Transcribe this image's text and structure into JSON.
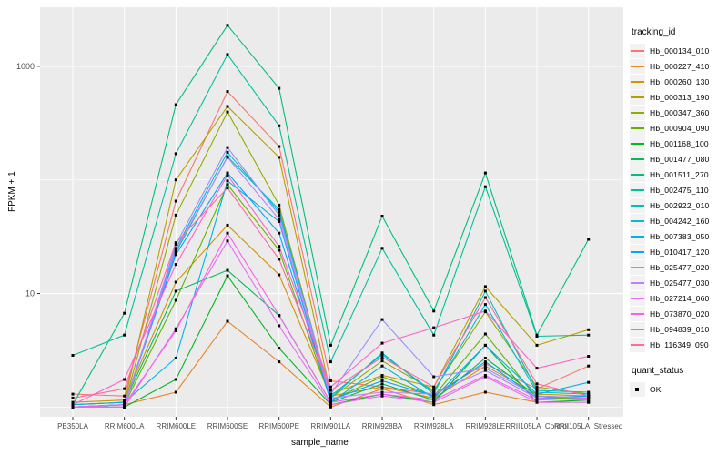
{
  "axes": {
    "y_title": "FPKM + 1",
    "x_title": "sample_name"
  },
  "legend_titles": {
    "tracking": "tracking_id",
    "quant": "quant_status"
  },
  "quant_status": {
    "label": "OK",
    "marker_color": "#000000"
  },
  "style": {
    "panel_bg": "#EBEBEB",
    "grid_color": "#FFFFFF",
    "tick_text": "#4D4D4D",
    "marker_color": "#000000",
    "background": "#FFFFFF"
  },
  "chart_data": {
    "type": "line",
    "title": "",
    "xlabel": "sample_name",
    "ylabel": "FPKM + 1",
    "y_scale": "log10",
    "y_tick_labels": [
      10,
      1000
    ],
    "y_gridlines_minor": [
      1,
      100
    ],
    "ylim": [
      0.82,
      3300
    ],
    "legend_position": "right",
    "grid": true,
    "categories": [
      "PB350LA",
      "RRIM600LA",
      "RRIM600LE",
      "RRIM600SE",
      "RRIM600PE",
      "RRIM901LA",
      "RRIM928BA",
      "RRIM928LA",
      "RRIM928LE",
      "RRII105LA_Control",
      "RRII105LA_Stressed"
    ],
    "series": [
      {
        "name": "Hb_000134_010",
        "color": "#F8766D",
        "values": [
          1.3,
          1.25,
          65,
          600,
          197,
          1.7,
          1.5,
          1.3,
          2.4,
          1.45,
          2.3
        ]
      },
      {
        "name": "Hb_000227_410",
        "color": "#E88526",
        "values": [
          1.0,
          1.05,
          1.35,
          5.7,
          2.5,
          1.0,
          1.45,
          1.05,
          1.35,
          1.1,
          1.1
        ]
      },
      {
        "name": "Hb_000260_130",
        "color": "#D39200",
        "values": [
          1.1,
          1.15,
          12.6,
          40,
          14.6,
          1.25,
          1.5,
          1.2,
          2.3,
          1.3,
          1.25
        ]
      },
      {
        "name": "Hb_000313_190",
        "color": "#B79F00",
        "values": [
          1.05,
          1.1,
          100,
          443,
          158,
          1.3,
          1.9,
          1.5,
          11.5,
          3.5,
          4.8
        ]
      },
      {
        "name": "Hb_000347_360",
        "color": "#93AA00",
        "values": [
          1.0,
          1.05,
          49,
          396,
          60,
          1.2,
          2.55,
          1.4,
          6.9,
          1.5,
          1.3
        ]
      },
      {
        "name": "Hb_000904_090",
        "color": "#64B200",
        "values": [
          1.0,
          1.05,
          8.7,
          91,
          24,
          1.15,
          1.85,
          1.25,
          4.4,
          1.2,
          1.2
        ]
      },
      {
        "name": "Hb_001168_100",
        "color": "#00B81F",
        "values": [
          1.0,
          1.0,
          1.75,
          14.3,
          3.3,
          1.05,
          1.3,
          1.1,
          3.5,
          1.1,
          1.15
        ]
      },
      {
        "name": "Hb_001477_080",
        "color": "#00BC59",
        "values": [
          1.05,
          1.1,
          10.5,
          16,
          6.4,
          1.1,
          1.6,
          1.15,
          2.7,
          1.25,
          1.2
        ]
      },
      {
        "name": "Hb_001511_270",
        "color": "#00BF7D",
        "values": [
          1.05,
          6.7,
          460,
          2300,
          640,
          3.5,
          48,
          7.0,
          115,
          4.3,
          30
        ]
      },
      {
        "name": "Hb_002475_110",
        "color": "#00C19C",
        "values": [
          2.85,
          4.3,
          170,
          1270,
          300,
          2.5,
          25,
          4.3,
          87,
          4.2,
          4.3
        ]
      },
      {
        "name": "Hb_002922_010",
        "color": "#00C0B8",
        "values": [
          1.0,
          1.05,
          23,
          160,
          55,
          1.2,
          3.0,
          1.3,
          10.5,
          1.4,
          1.35
        ]
      },
      {
        "name": "Hb_004242_160",
        "color": "#00BCD6",
        "values": [
          1.0,
          1.05,
          25,
          175,
          52,
          1.25,
          2.9,
          1.35,
          8.0,
          1.35,
          1.3
        ]
      },
      {
        "name": "Hb_007383_050",
        "color": "#00B2EB",
        "values": [
          1.05,
          1.1,
          2.7,
          98,
          43,
          1.1,
          2.3,
          1.2,
          3.5,
          1.3,
          1.65
        ]
      },
      {
        "name": "Hb_010417_120",
        "color": "#06A5FF",
        "values": [
          1.0,
          1.05,
          22,
          115,
          34,
          1.15,
          1.7,
          1.25,
          2.5,
          1.2,
          1.25
        ]
      },
      {
        "name": "Hb_025477_020",
        "color": "#9590FF",
        "values": [
          1.0,
          1.0,
          27,
          193,
          49,
          1.3,
          5.9,
          1.85,
          2.2,
          1.25,
          1.2
        ]
      },
      {
        "name": "Hb_025477_030",
        "color": "#C17EFF",
        "values": [
          1.0,
          1.05,
          24,
          158,
          45,
          1.2,
          1.35,
          1.3,
          2.1,
          1.2,
          1.15
        ]
      },
      {
        "name": "Hb_027214_060",
        "color": "#E36EF6",
        "values": [
          1.0,
          1.0,
          4.9,
          29,
          5.2,
          1.05,
          1.25,
          1.1,
          1.85,
          1.1,
          1.1
        ]
      },
      {
        "name": "Hb_073870_020",
        "color": "#F563E3",
        "values": [
          1.0,
          1.05,
          4.7,
          34,
          6.4,
          1.1,
          1.3,
          1.15,
          1.9,
          1.15,
          1.2
        ]
      },
      {
        "name": "Hb_094839_010",
        "color": "#FF61C9",
        "values": [
          1.05,
          1.75,
          18,
          110,
          26,
          1.5,
          3.65,
          5.0,
          7.0,
          2.2,
          2.8
        ]
      },
      {
        "name": "Hb_116349_090",
        "color": "#FF68A1",
        "values": [
          1.2,
          1.45,
          28,
          85,
          20,
          1.4,
          2.75,
          1.5,
          9.2,
          1.6,
          1.25
        ]
      }
    ]
  }
}
